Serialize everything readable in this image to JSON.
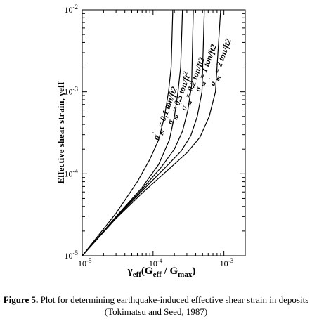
{
  "chart_data": {
    "type": "line",
    "xscale": "log",
    "yscale": "log",
    "xlim": [
      1e-05,
      0.002
    ],
    "ylim": [
      1e-05,
      0.01
    ],
    "ylabel": "Effective shear strain, γeff",
    "xlabel_parts": {
      "gamma": "γ",
      "eff": "eff",
      "open": "(G",
      "geff": "eff",
      "slash": " / G",
      "gmax": "max",
      "close": ")"
    },
    "x_ticks": [
      {
        "value": 1e-05,
        "mant": "10",
        "exp": "-5"
      },
      {
        "value": 0.0001,
        "mant": "10",
        "exp": "-4"
      },
      {
        "value": 0.001,
        "mant": "10",
        "exp": "-3"
      }
    ],
    "y_ticks": [
      {
        "value": 1e-05,
        "mant": "10",
        "exp": "-5"
      },
      {
        "value": 0.0001,
        "mant": "10",
        "exp": "-4"
      },
      {
        "value": 0.001,
        "mant": "10",
        "exp": "-3"
      },
      {
        "value": 0.01,
        "mant": "10",
        "exp": "-2"
      }
    ],
    "series": [
      {
        "name": "σ'm = 0.1 ton/ft2",
        "x": [
          1e-05,
          3e-05,
          6e-05,
          9e-05,
          0.00012,
          0.000145,
          0.000165,
          0.00018,
          0.00019
        ],
        "y": [
          1e-05,
          3.3e-05,
          8e-05,
          0.00015,
          0.00026,
          0.0005,
          0.001,
          0.002,
          0.01
        ]
      },
      {
        "name": "σ'm = 0.5 ton/ft2",
        "x": [
          1e-05,
          3e-05,
          7e-05,
          0.00012,
          0.00017,
          0.0002,
          0.000225,
          0.000245,
          0.00026
        ],
        "y": [
          1e-05,
          3e-05,
          6.8e-05,
          0.00013,
          0.00026,
          0.0005,
          0.001,
          0.002,
          0.01
        ]
      },
      {
        "name": "σ'm = 0.2 ton/ft2",
        "x": [
          1e-05,
          3e-05,
          7e-05,
          0.00013,
          0.0002,
          0.00026,
          0.00031,
          0.00035,
          0.00037
        ],
        "y": [
          1e-05,
          2.95e-05,
          6.5e-05,
          0.00012,
          0.0002,
          0.00033,
          0.0006,
          0.0012,
          0.01
        ]
      },
      {
        "name": "σ'm = 1 ton/ft2",
        "x": [
          1e-05,
          3e-05,
          7e-05,
          0.00015,
          0.00025,
          0.00034,
          0.00042,
          0.00049,
          0.00053
        ],
        "y": [
          1e-05,
          2.9e-05,
          6.2e-05,
          0.00012,
          0.00019,
          0.00029,
          0.0005,
          0.001,
          0.01
        ]
      },
      {
        "name": "σ'm = 2 ton/ft2",
        "x": [
          1e-05,
          3e-05,
          7e-05,
          0.00015,
          0.0003,
          0.00046,
          0.00062,
          0.00076,
          0.0009
        ],
        "y": [
          1e-05,
          2.85e-05,
          5.8e-05,
          0.000105,
          0.00018,
          0.00028,
          0.0005,
          0.001,
          0.01
        ]
      }
    ],
    "curve_labels": [
      {
        "sigma": "σ",
        "prime": "'",
        "sub": "m",
        "text": " = 0.1 ton/ft2"
      },
      {
        "sigma": "σ",
        "prime": "'",
        "sub": "m",
        "text": " = 0.5 ton/ft",
        "sup": "2"
      },
      {
        "sigma": "σ",
        "prime": "'",
        "sub": "m",
        "text": " = 0.2 ton/ft2"
      },
      {
        "sigma": "σ",
        "prime": "'",
        "sub": "m",
        "text": " = 1 ton/ft2"
      },
      {
        "sigma": "σ",
        "prime": "'",
        "sub": "m",
        "text": " = 2 ton/ft2"
      }
    ],
    "grid": false,
    "legend": "none"
  },
  "caption": {
    "label": "Figure 5.",
    "text": " Plot for determining earthquake-induced effective shear strain in deposits (Tokimatsu and Seed, 1987)"
  }
}
